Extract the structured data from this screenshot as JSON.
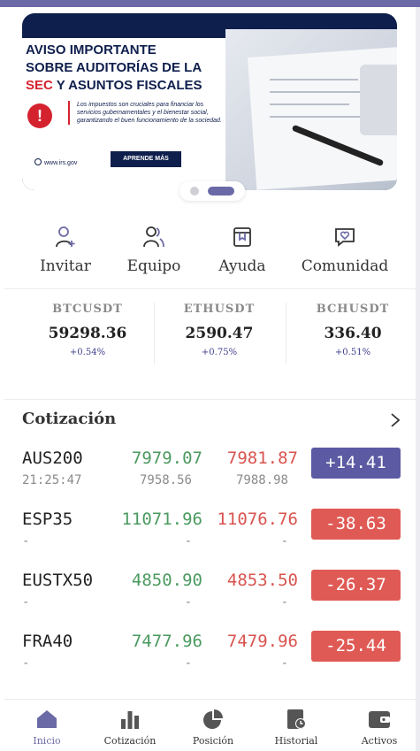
{
  "banner": {
    "headline_1": "AVISO IMPORTANTE",
    "headline_2": "SOBRE AUDITORÍAS DE LA",
    "headline_red": "SEC",
    "headline_3": " Y ASUNTOS FISCALES",
    "description": "Los impuestos son cruciales para financiar los servicios gubernamentales y el bienestar social, garantizando el buen funcionamiento de la sociedad.",
    "cta_label": "APRENDE MÁS",
    "site": "www.irs.gov",
    "alert_glyph": "!",
    "colors": {
      "navy": "#0f1f4d",
      "red": "#d4232f"
    }
  },
  "quick_actions": [
    {
      "label": "Invitar",
      "icon": "user-plus-icon"
    },
    {
      "label": "Equipo",
      "icon": "users-icon"
    },
    {
      "label": "Ayuda",
      "icon": "book-icon"
    },
    {
      "label": "Comunidad",
      "icon": "chat-heart-icon"
    }
  ],
  "tickers": [
    {
      "symbol": "BTCUSDT",
      "price": "59298.36",
      "change": "+0.54%"
    },
    {
      "symbol": "ETHUSDT",
      "price": "2590.47",
      "change": "+0.75%"
    },
    {
      "symbol": "BCHUSDT",
      "price": "336.40",
      "change": "+0.51%"
    }
  ],
  "quotes": {
    "title": "Cotización",
    "rows": [
      {
        "symbol": "AUS200",
        "time": "21:25:47",
        "bid": "7979.07",
        "ask": "7981.87",
        "bid_low": "7958.56",
        "ask_high": "7988.98",
        "change": "+14.41",
        "direction": "up"
      },
      {
        "symbol": "ESP35",
        "time": "-",
        "bid": "11071.96",
        "ask": "11076.76",
        "bid_low": "-",
        "ask_high": "-",
        "change": "-38.63",
        "direction": "down"
      },
      {
        "symbol": "EUSTX50",
        "time": "-",
        "bid": "4850.90",
        "ask": "4853.50",
        "bid_low": "-",
        "ask_high": "-",
        "change": "-26.37",
        "direction": "down"
      },
      {
        "symbol": "FRA40",
        "time": "-",
        "bid": "7477.96",
        "ask": "7479.96",
        "bid_low": "-",
        "ask_high": "-",
        "change": "-25.44",
        "direction": "down"
      }
    ]
  },
  "nav": [
    {
      "label": "Inicio",
      "icon": "home-icon",
      "active": true
    },
    {
      "label": "Cotización",
      "icon": "bar-chart-icon",
      "active": false
    },
    {
      "label": "Posición",
      "icon": "pie-chart-icon",
      "active": false
    },
    {
      "label": "Historial",
      "icon": "history-icon",
      "active": false
    },
    {
      "label": "Activos",
      "icon": "wallet-icon",
      "active": false
    }
  ],
  "colors": {
    "accent": "#6b6aa6",
    "up": "#4a9a5f",
    "down": "#d9534f",
    "badge_up": "#5b5aa3",
    "badge_down": "#e05a55"
  }
}
